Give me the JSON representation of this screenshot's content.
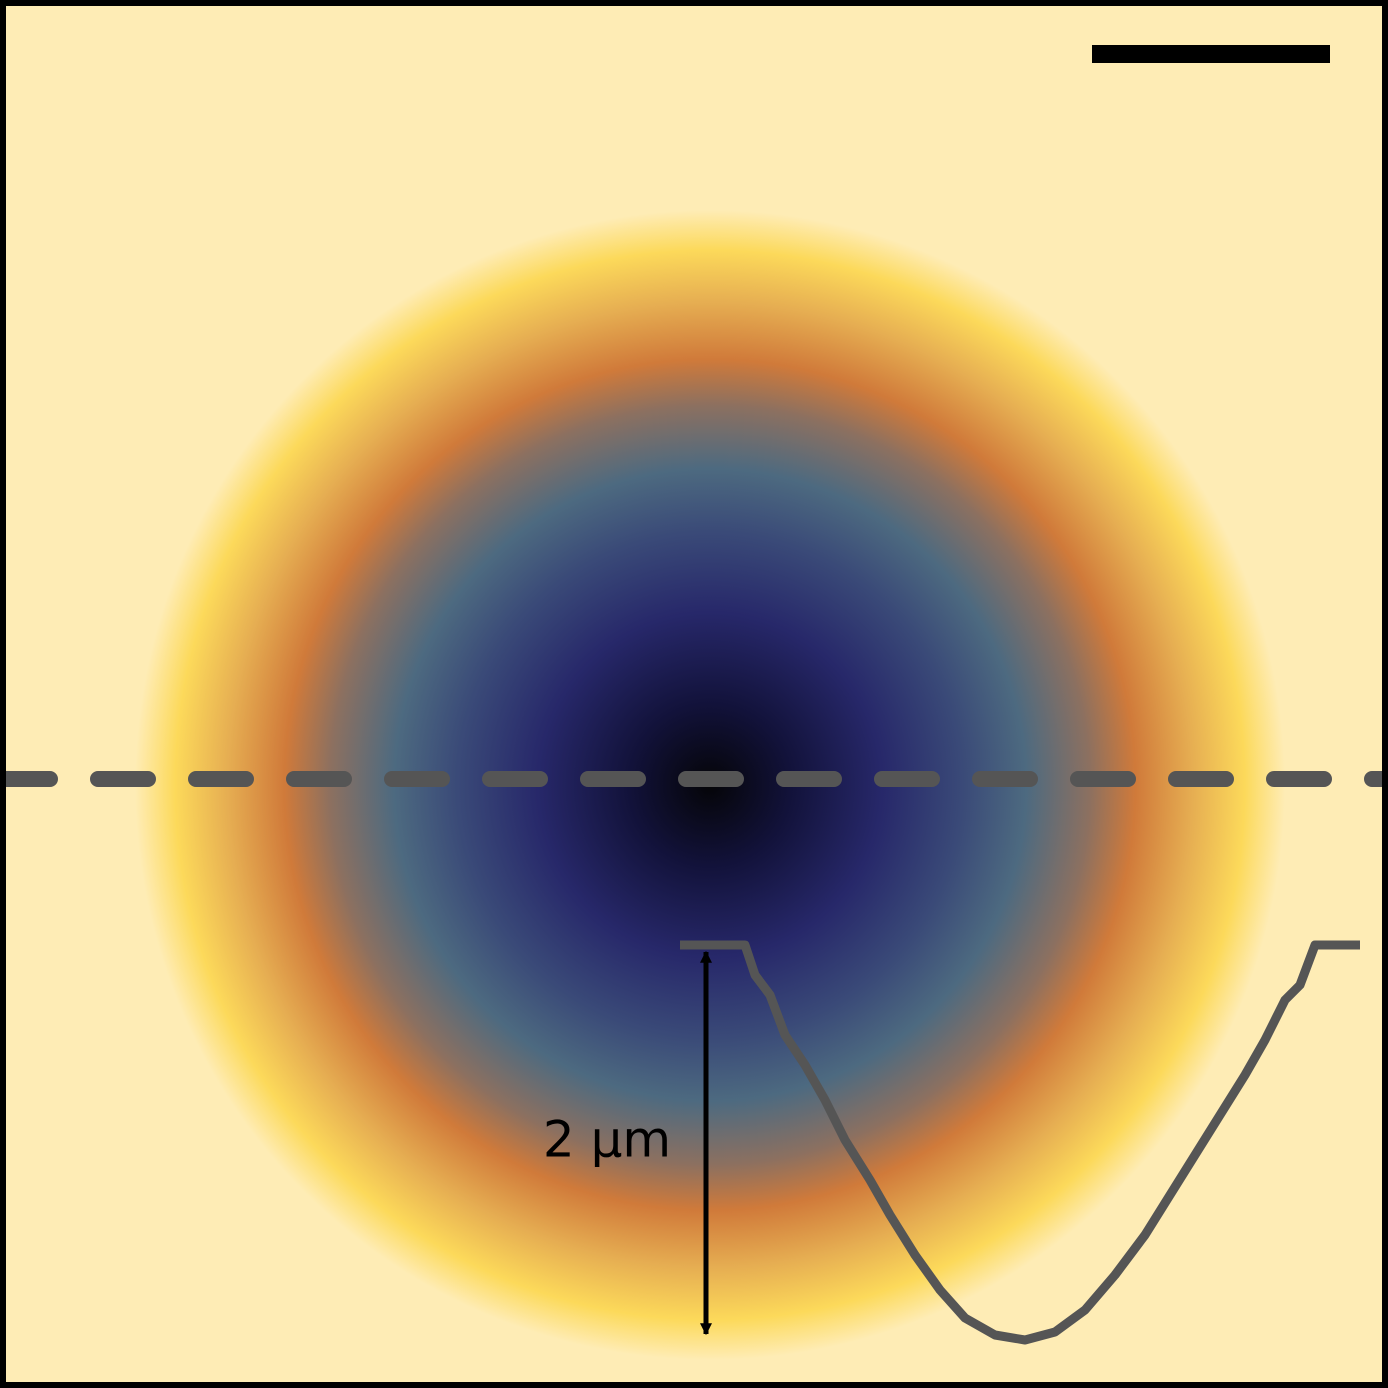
{
  "annotation": {
    "label": "2 µm"
  }
}
